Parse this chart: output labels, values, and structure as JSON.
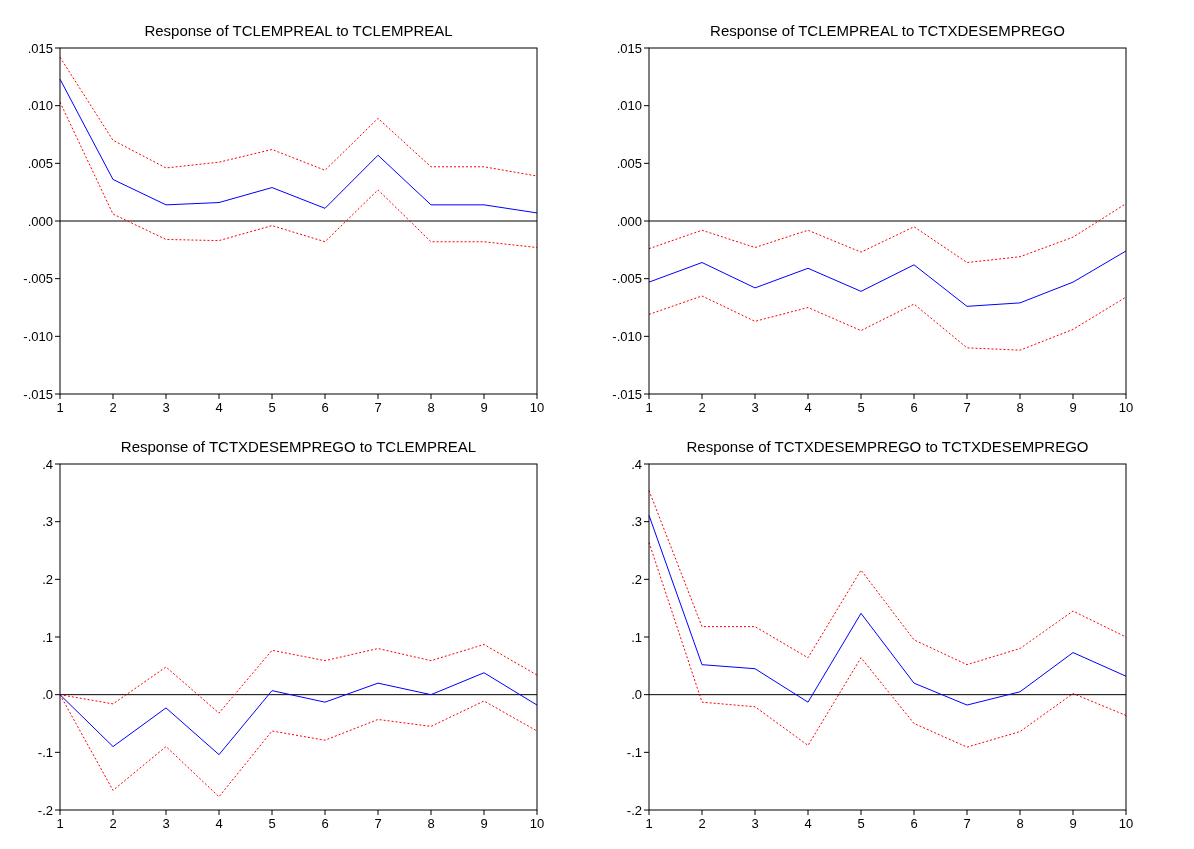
{
  "chart_data": [
    {
      "type": "line",
      "title": "Response of TCLEMPREAL to TCLEMPREAL",
      "x": [
        1,
        2,
        3,
        4,
        5,
        6,
        7,
        8,
        9,
        10
      ],
      "xlim": [
        1,
        10
      ],
      "xticks": [
        1,
        2,
        3,
        4,
        5,
        6,
        7,
        8,
        9,
        10
      ],
      "ylim": [
        -0.015,
        0.015
      ],
      "yticks": [
        {
          "value": -0.015,
          "label": "-.015"
        },
        {
          "value": -0.01,
          "label": "-.010"
        },
        {
          "value": -0.005,
          "label": "-.005"
        },
        {
          "value": 0,
          "label": ".000"
        },
        {
          "value": 0.005,
          "label": ".005"
        },
        {
          "value": 0.01,
          "label": ".010"
        },
        {
          "value": 0.015,
          "label": ".015"
        }
      ],
      "grid": false,
      "ref_lines": [
        {
          "axis": "y",
          "value": 0,
          "color": "#000000"
        }
      ],
      "series": [
        {
          "color": "#0000ff",
          "line_style": "solid",
          "values": [
            0.0123,
            0.0036,
            0.0014,
            0.0016,
            0.0029,
            0.0011,
            0.0057,
            0.0014,
            0.0014,
            0.0007
          ]
        },
        {
          "color": "#ff0000",
          "line_style": "dotted",
          "values": [
            0.0142,
            0.007,
            0.0046,
            0.0051,
            0.0062,
            0.0044,
            0.0089,
            0.0047,
            0.0047,
            0.0039
          ]
        },
        {
          "color": "#ff0000",
          "line_style": "dotted",
          "values": [
            0.0103,
            0.0006,
            -0.0016,
            -0.0017,
            -0.0004,
            -0.0018,
            0.0027,
            -0.0018,
            -0.0018,
            -0.0023
          ]
        }
      ]
    },
    {
      "type": "line",
      "title": "Response of TCLEMPREAL to TCTXDESEMPREGO",
      "x": [
        1,
        2,
        3,
        4,
        5,
        6,
        7,
        8,
        9,
        10
      ],
      "xlim": [
        1,
        10
      ],
      "xticks": [
        1,
        2,
        3,
        4,
        5,
        6,
        7,
        8,
        9,
        10
      ],
      "ylim": [
        -0.015,
        0.015
      ],
      "yticks": [
        {
          "value": -0.015,
          "label": "-.015"
        },
        {
          "value": -0.01,
          "label": "-.010"
        },
        {
          "value": -0.005,
          "label": "-.005"
        },
        {
          "value": 0,
          "label": ".000"
        },
        {
          "value": 0.005,
          "label": ".005"
        },
        {
          "value": 0.01,
          "label": ".010"
        },
        {
          "value": 0.015,
          "label": ".015"
        }
      ],
      "grid": false,
      "ref_lines": [
        {
          "axis": "y",
          "value": 0,
          "color": "#000000"
        }
      ],
      "series": [
        {
          "color": "#0000ff",
          "line_style": "solid",
          "values": [
            -0.0053,
            -0.0036,
            -0.0058,
            -0.0041,
            -0.0061,
            -0.0038,
            -0.0074,
            -0.0071,
            -0.0053,
            -0.0026
          ]
        },
        {
          "color": "#ff0000",
          "line_style": "dotted",
          "values": [
            -0.0024,
            -0.0008,
            -0.0023,
            -0.0008,
            -0.0027,
            -0.0005,
            -0.0036,
            -0.0031,
            -0.0014,
            0.0015
          ]
        },
        {
          "color": "#ff0000",
          "line_style": "dotted",
          "values": [
            -0.0081,
            -0.0065,
            -0.0087,
            -0.0075,
            -0.0095,
            -0.0072,
            -0.011,
            -0.0112,
            -0.0094,
            -0.0066
          ]
        }
      ]
    },
    {
      "type": "line",
      "title": "Response of TCTXDESEMPREGO to TCLEMPREAL",
      "x": [
        1,
        2,
        3,
        4,
        5,
        6,
        7,
        8,
        9,
        10
      ],
      "xlim": [
        1,
        10
      ],
      "xticks": [
        1,
        2,
        3,
        4,
        5,
        6,
        7,
        8,
        9,
        10
      ],
      "ylim": [
        -0.2,
        0.4
      ],
      "yticks": [
        {
          "value": -0.2,
          "label": "-.2"
        },
        {
          "value": -0.1,
          "label": "-.1"
        },
        {
          "value": 0,
          "label": ".0"
        },
        {
          "value": 0.1,
          "label": ".1"
        },
        {
          "value": 0.2,
          "label": ".2"
        },
        {
          "value": 0.3,
          "label": ".3"
        },
        {
          "value": 0.4,
          "label": ".4"
        }
      ],
      "grid": false,
      "ref_lines": [
        {
          "axis": "y",
          "value": 0,
          "color": "#000000"
        }
      ],
      "series": [
        {
          "color": "#0000ff",
          "line_style": "solid",
          "values": [
            0,
            -0.09,
            -0.023,
            -0.104,
            0.007,
            -0.013,
            0.02,
            0,
            0.038,
            -0.018
          ]
        },
        {
          "color": "#ff0000",
          "line_style": "dotted",
          "values": [
            0,
            -0.016,
            0.048,
            -0.032,
            0.077,
            0.059,
            0.08,
            0.059,
            0.087,
            0.034
          ]
        },
        {
          "color": "#ff0000",
          "line_style": "dotted",
          "values": [
            0,
            -0.166,
            -0.09,
            -0.177,
            -0.063,
            -0.079,
            -0.043,
            -0.055,
            -0.011,
            -0.063
          ]
        }
      ]
    },
    {
      "type": "line",
      "title": "Response of TCTXDESEMPREGO to TCTXDESEMPREGO",
      "x": [
        1,
        2,
        3,
        4,
        5,
        6,
        7,
        8,
        9,
        10
      ],
      "xlim": [
        1,
        10
      ],
      "xticks": [
        1,
        2,
        3,
        4,
        5,
        6,
        7,
        8,
        9,
        10
      ],
      "ylim": [
        -0.2,
        0.4
      ],
      "yticks": [
        {
          "value": -0.2,
          "label": "-.2"
        },
        {
          "value": -0.1,
          "label": "-.1"
        },
        {
          "value": 0,
          "label": ".0"
        },
        {
          "value": 0.1,
          "label": ".1"
        },
        {
          "value": 0.2,
          "label": ".2"
        },
        {
          "value": 0.3,
          "label": ".3"
        },
        {
          "value": 0.4,
          "label": ".4"
        }
      ],
      "grid": false,
      "ref_lines": [
        {
          "axis": "y",
          "value": 0,
          "color": "#000000"
        }
      ],
      "series": [
        {
          "color": "#0000ff",
          "line_style": "solid",
          "values": [
            0.311,
            0.052,
            0.045,
            -0.013,
            0.141,
            0.02,
            -0.018,
            0.005,
            0.073,
            0.032
          ]
        },
        {
          "color": "#ff0000",
          "line_style": "dotted",
          "values": [
            0.354,
            0.118,
            0.118,
            0.064,
            0.216,
            0.095,
            0.052,
            0.08,
            0.145,
            0.1
          ]
        },
        {
          "color": "#ff0000",
          "line_style": "dotted",
          "values": [
            0.264,
            -0.013,
            -0.021,
            -0.088,
            0.064,
            -0.05,
            -0.091,
            -0.064,
            0.002,
            -0.036
          ]
        }
      ]
    }
  ]
}
